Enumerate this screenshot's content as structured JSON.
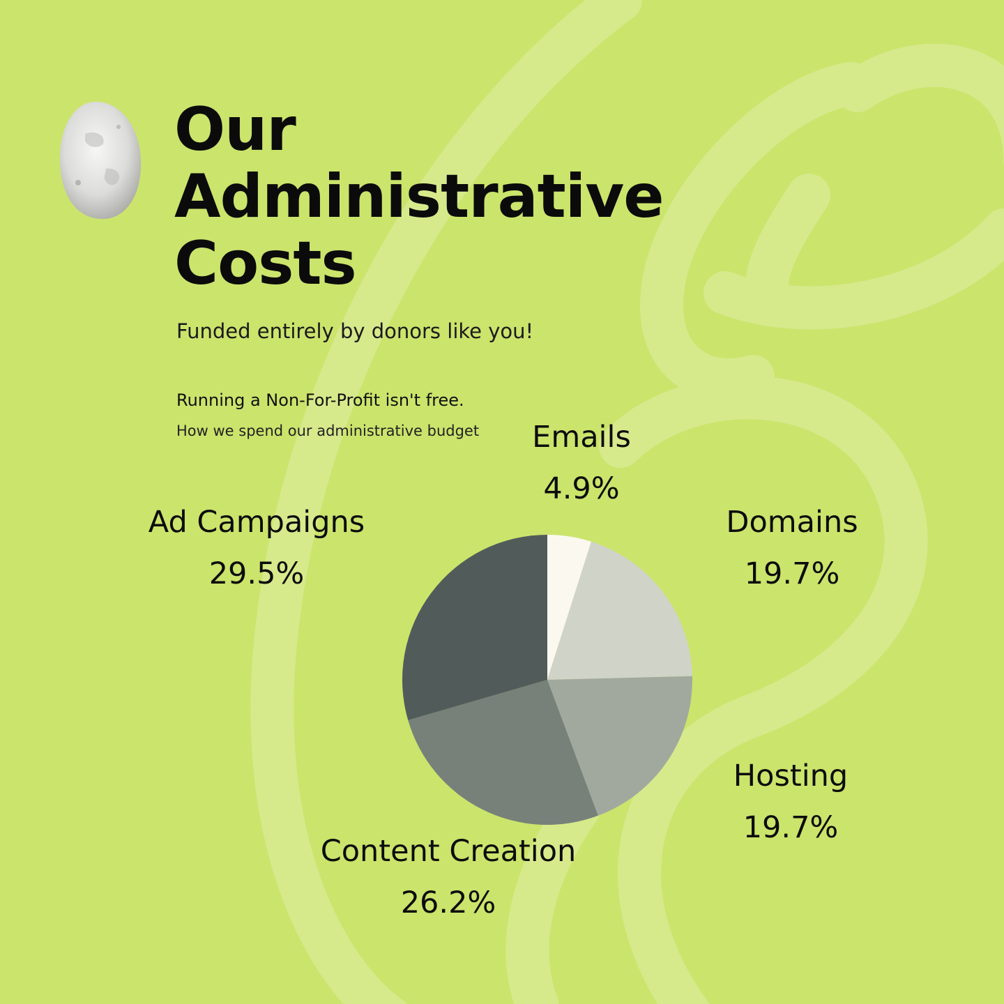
{
  "header": {
    "title_lines": [
      "Our",
      "Administrative",
      "Costs"
    ],
    "subtitle": "Funded entirely by donors like you!",
    "tagline": "Running a Non-For-Profit isn't free.",
    "note": "How we spend our administrative budget"
  },
  "colors": {
    "background": "#cbe46c",
    "swirl": "#d6ea8c",
    "slices": [
      "#fbf9ef",
      "#d0d3c7",
      "#a1a99e",
      "#77817a",
      "#515c5a"
    ]
  },
  "chart_data": {
    "type": "pie",
    "title": "",
    "slices": [
      {
        "label": "Emails",
        "value": 4.9,
        "display": "4.9%"
      },
      {
        "label": "Domains",
        "value": 19.7,
        "display": "19.7%"
      },
      {
        "label": "Hosting",
        "value": 19.7,
        "display": "19.7%"
      },
      {
        "label": "Content Creation",
        "value": 26.2,
        "display": "26.2%"
      },
      {
        "label": "Ad Campaigns",
        "value": 29.5,
        "display": "29.5%"
      }
    ],
    "start": "top",
    "direction": "clockwise",
    "legend": "none"
  }
}
